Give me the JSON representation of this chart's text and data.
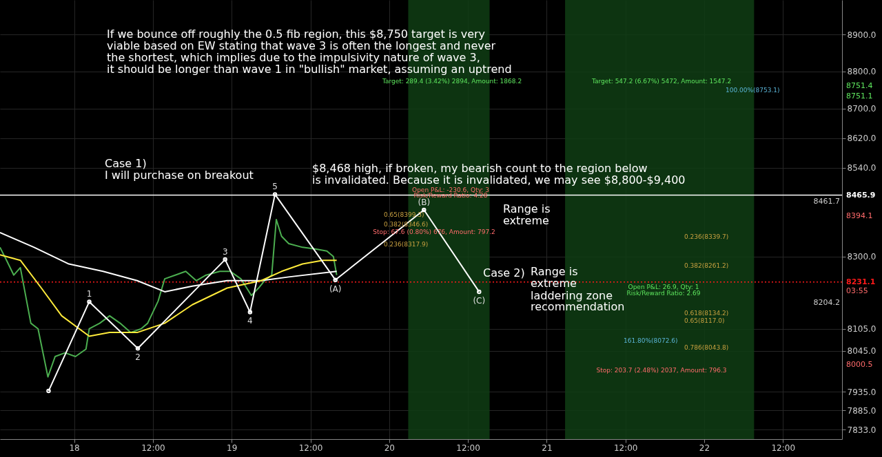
{
  "chart_data": {
    "type": "line",
    "xlim": [
      "--03-17T12:42",
      "--03-22T21:00"
    ],
    "xticks": [
      {
        "value": "--03-18",
        "label": "18"
      },
      {
        "value": "--03-18T12:00",
        "label": "12:00"
      },
      {
        "value": "--03-19",
        "label": "19"
      },
      {
        "value": "--03-19T12:00",
        "label": "12:00"
      },
      {
        "value": "--03-20",
        "label": "20"
      },
      {
        "value": "--03-20T12:00",
        "label": "12:00"
      },
      {
        "value": "--03-21",
        "label": "21"
      },
      {
        "value": "--03-21T12:00",
        "label": "12:00"
      },
      {
        "value": "--03-22",
        "label": "22"
      },
      {
        "value": "--03-22T12:00",
        "label": "12:00"
      }
    ],
    "ylim": [
      7807,
      8993
    ],
    "yticks": [
      {
        "value": 7833,
        "label": "7833.0"
      },
      {
        "value": 7885,
        "label": "7885.0"
      },
      {
        "value": 7935,
        "label": "7935.0"
      },
      {
        "value": 8045,
        "label": "8045.0"
      },
      {
        "value": 8105,
        "label": "8105.0"
      },
      {
        "value": 8300,
        "label": "8300.0"
      },
      {
        "value": 8540,
        "label": "8540.0"
      },
      {
        "value": 8620,
        "label": "8620.0"
      },
      {
        "value": 8700,
        "label": "8700.0"
      },
      {
        "value": 8800,
        "label": "8800.0"
      },
      {
        "value": 8900,
        "label": "8900.0"
      }
    ],
    "grid": true,
    "series": [
      {
        "color": "#4caf50",
        "x": [
          "--03-17T12:42",
          "--03-17T13:42",
          "--03-17T14:48",
          "--03-17T15:48",
          "--03-17T17:24",
          "--03-17T18:30",
          "--03-17T20:00",
          "--03-17T21:06",
          "--03-17T22:36",
          "--03-18T00:12",
          "--03-18T01:48",
          "--03-18T02:18",
          "--03-18T03:54",
          "--03-18T05:24",
          "--03-18T07:00",
          "--03-18T08:36",
          "--03-18T10:12",
          "--03-18T11:12",
          "--03-18T12:48",
          "--03-18T13:48",
          "--03-18T15:24",
          "--03-18T17:00",
          "--03-18T18:36",
          "--03-18T20:06",
          "--03-18T22:12",
          "--03-18T23:48",
          "--03-19T01:24",
          "--03-19T03:00",
          "--03-19T04:06",
          "--03-19T05:00",
          "--03-19T06:06",
          "--03-19T06:48",
          "--03-19T07:36",
          "--03-19T08:42",
          "--03-19T10:48",
          "--03-19T12:54",
          "--03-19T14:30",
          "--03-19T15:30",
          "--03-19T16:00"
        ],
        "values": [
          8325,
          8290,
          8250,
          8270,
          8120,
          8105,
          7975,
          8030,
          8040,
          8030,
          8050,
          8105,
          8120,
          8140,
          8120,
          8095,
          8105,
          8120,
          8180,
          8240,
          8250,
          8260,
          8235,
          8250,
          8260,
          8260,
          8240,
          8195,
          8215,
          8235,
          8250,
          8400,
          8355,
          8335,
          8325,
          8320,
          8315,
          8300,
          8250
        ]
      },
      {
        "color": "#ffffff",
        "x": [
          "--03-17T12:42",
          "--03-17T17:54",
          "--03-17T23:12",
          "--03-18T04:24",
          "--03-18T09:36",
          "--03-18T13:48",
          "--03-18T18:00",
          "--03-18T23:18",
          "--03-19T04:30",
          "--03-19T08:42",
          "--03-19T16:00"
        ],
        "values": [
          8365,
          8325,
          8280,
          8260,
          8235,
          8205,
          8220,
          8235,
          8235,
          8245,
          8260
        ]
      },
      {
        "color": "#ffeb3b",
        "x": [
          "--03-17T12:42",
          "--03-17T15:48",
          "--03-17T19:00",
          "--03-17T22:06",
          "--03-18T02:18",
          "--03-18T05:24",
          "--03-18T09:36",
          "--03-18T13:48",
          "--03-18T18:00",
          "--03-18T23:18",
          "--03-19T04:30",
          "--03-19T07:36",
          "--03-19T10:48",
          "--03-19T13:54",
          "--03-19T16:00"
        ],
        "values": [
          8305,
          8290,
          8215,
          8140,
          8085,
          8095,
          8095,
          8120,
          8170,
          8215,
          8235,
          8260,
          8280,
          8290,
          8290
        ]
      },
      {
        "color": "#ffffff",
        "marker": "circle",
        "x": [
          "--03-17T20:06",
          "--03-18T02:18",
          "--03-18T09:42",
          "--03-18T23:00",
          "--03-19T02:48",
          "--03-19T06:36",
          "--03-19T15:48",
          "--03-20T05:18",
          "--03-20T13:42"
        ],
        "values": [
          7937,
          8178,
          8052,
          8292,
          8150,
          8468,
          8237,
          8426,
          8205
        ]
      }
    ],
    "bands": [
      {
        "axis": "x",
        "from": "--03-20T02:54",
        "to": "--03-20T15:18",
        "color": "#0f3d14"
      },
      {
        "axis": "x",
        "from": "--03-21T02:48",
        "to": "--03-22T07:36",
        "color": "#0f3d14"
      }
    ],
    "ref_lines": [
      {
        "axis": "y",
        "value": 8465.9,
        "label": "8465.9",
        "color": "#ffffff"
      },
      {
        "axis": "y",
        "value": 8231.1,
        "label": "8231.1",
        "color": "#ff1a1a",
        "line_style": "dotted"
      }
    ],
    "annotations": [
      "If we bounce off roughly the 0.5 fib region, this $8,750 target is very",
      "viable based on EW stating that wave 3 is often the longest and never",
      "the shortest, which implies due to the impulsivity nature of wave 3,",
      "it should be longer than wave 1 in \"bullish\" market, assuming an uptrend",
      "Case 1)",
      "I will purchase on breakout",
      "$8,468 high, if broken, my bearish count to the region below",
      "is invalidated. Because it is invalidated, we may see $8,800-$9,400",
      "Range is",
      "extreme",
      "Case 2)",
      "Range is",
      "extreme",
      "laddering zone",
      "recommendation",
      "Target: 289.4 (3.42%) 2894, Amount: 1868.2",
      "Target: 547.2 (6.67%) 5472, Amount: 1547.2",
      "Stop: 67.6 (0.80%) 676, Amount: 797.2",
      "Open P&L: -230.6, Qty: 3",
      "Risk/Reward Ratio: 4.28",
      "Open P&L: 26.9, Qty: 1",
      "Risk/Reward Ratio: 2.69",
      "Stop: 203.7 (2.48%) 2037, Amount: 796.3",
      "03:55",
      "8751.4",
      "8751.1",
      "8461.7",
      "8394.1",
      "8204.2",
      "8000.5",
      "0.65(8399.3)",
      "0.382(8346.6)",
      "0.236(8317.9)",
      "0.236(8339.7)",
      "0.382(8261.2)",
      "0.618(8134.2)",
      "0.65(8117.0)",
      "0.786(8043.8)",
      "161.80%(8072.6)",
      "100.00%(8753.1)",
      {
        "text": "1",
        "x": "--03-18T02:18",
        "y": 8178
      },
      {
        "text": "2",
        "x": "--03-18T09:42",
        "y": 8052
      },
      {
        "text": "3",
        "x": "--03-18T23:00",
        "y": 8292
      },
      {
        "text": "4",
        "x": "--03-19T02:48",
        "y": 8150
      },
      {
        "text": "5",
        "x": "--03-19T06:36",
        "y": 8468
      },
      {
        "text": "(A)",
        "x": "--03-19T15:48",
        "y": 8237
      },
      {
        "text": "(B)",
        "x": "--03-20T05:18",
        "y": 8426
      },
      {
        "text": "(C)",
        "x": "--03-20T13:42",
        "y": 8205
      }
    ]
  }
}
